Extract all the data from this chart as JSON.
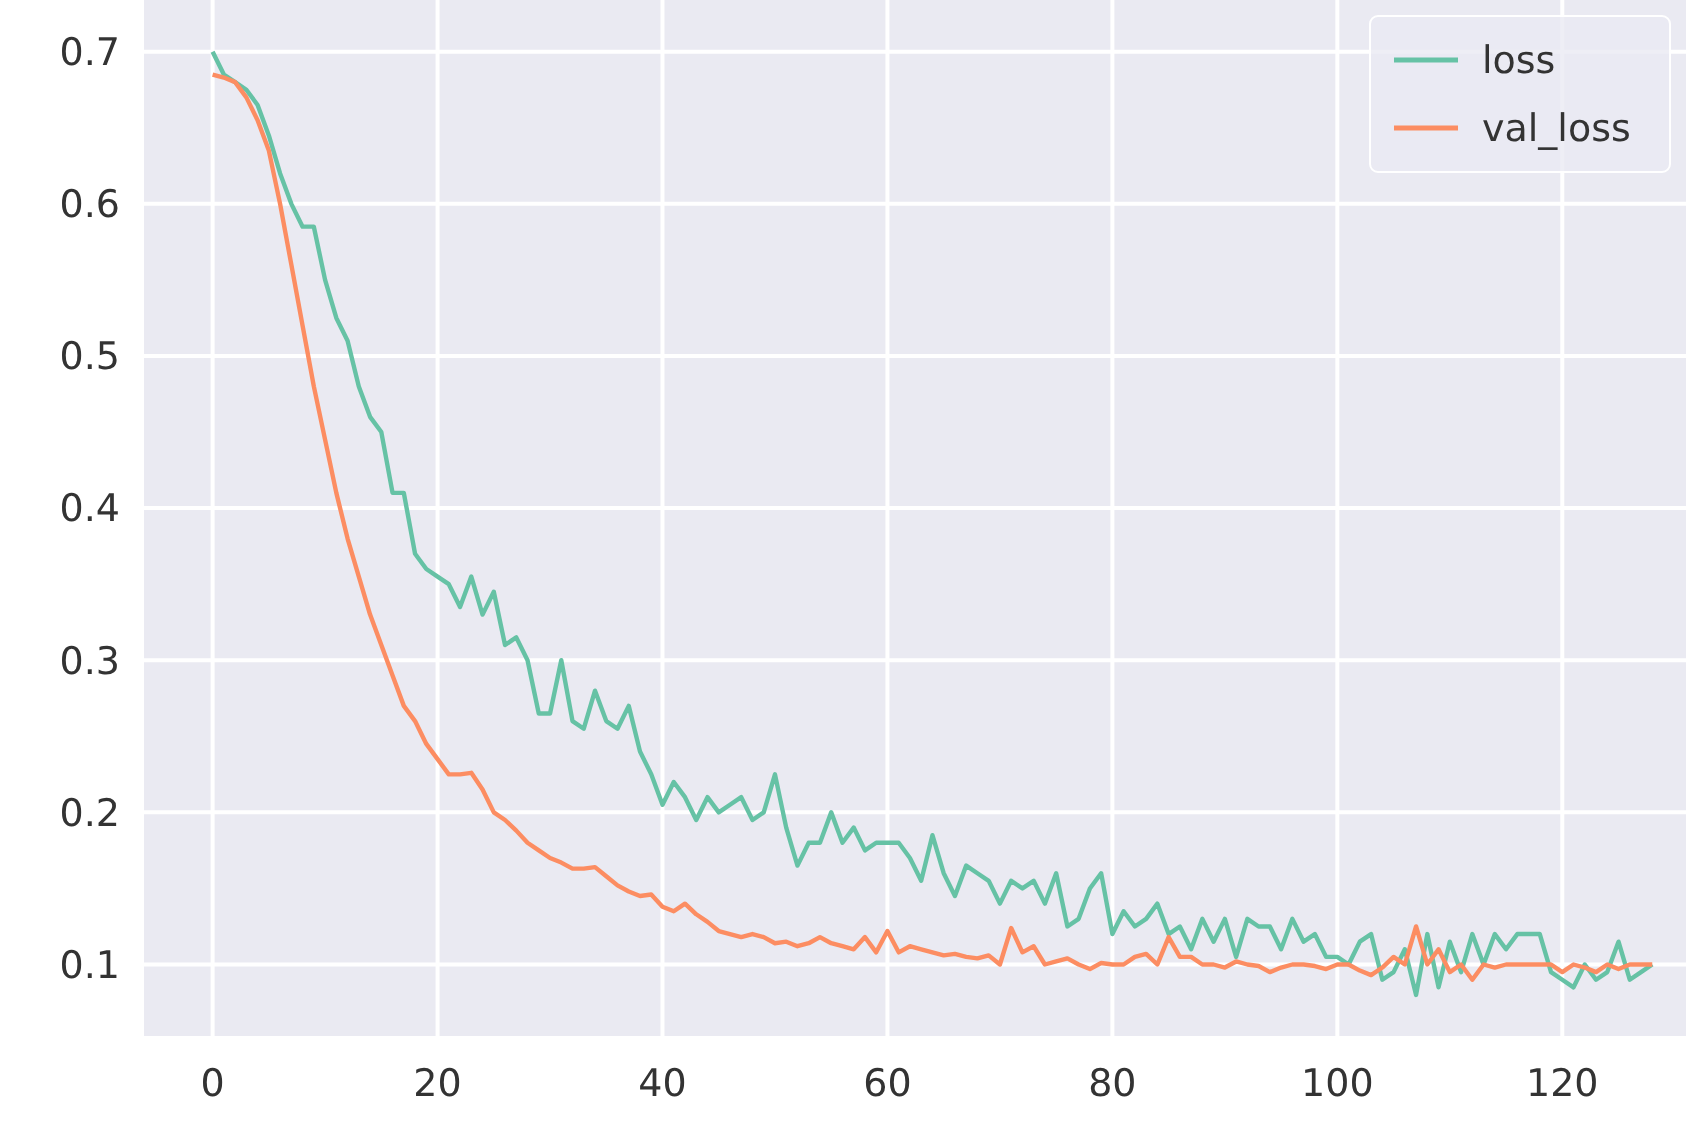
{
  "chart_data": {
    "type": "line",
    "x": [
      0,
      1,
      2,
      3,
      4,
      5,
      6,
      7,
      8,
      9,
      10,
      11,
      12,
      13,
      14,
      15,
      16,
      17,
      18,
      19,
      20,
      21,
      22,
      23,
      24,
      25,
      26,
      27,
      28,
      29,
      30,
      31,
      32,
      33,
      34,
      35,
      36,
      37,
      38,
      39,
      40,
      41,
      42,
      43,
      44,
      45,
      46,
      47,
      48,
      49,
      50,
      51,
      52,
      53,
      54,
      55,
      56,
      57,
      58,
      59,
      60,
      61,
      62,
      63,
      64,
      65,
      66,
      67,
      68,
      69,
      70,
      71,
      72,
      73,
      74,
      75,
      76,
      77,
      78,
      79,
      80,
      81,
      82,
      83,
      84,
      85,
      86,
      87,
      88,
      89,
      90,
      91,
      92,
      93,
      94,
      95,
      96,
      97,
      98,
      99,
      100,
      101,
      102,
      103,
      104,
      105,
      106,
      107,
      108,
      109,
      110,
      111,
      112,
      113,
      114,
      115,
      116,
      117,
      118,
      119,
      120,
      121,
      122,
      123,
      124,
      125,
      126,
      127,
      128
    ],
    "series": [
      {
        "name": "loss",
        "color": "#66c2a5",
        "values": [
          0.7,
          0.685,
          0.68,
          0.675,
          0.665,
          0.645,
          0.62,
          0.6,
          0.585,
          0.585,
          0.55,
          0.525,
          0.51,
          0.48,
          0.46,
          0.45,
          0.41,
          0.41,
          0.37,
          0.36,
          0.355,
          0.35,
          0.335,
          0.355,
          0.33,
          0.345,
          0.31,
          0.315,
          0.3,
          0.265,
          0.265,
          0.3,
          0.26,
          0.255,
          0.28,
          0.26,
          0.255,
          0.27,
          0.24,
          0.225,
          0.205,
          0.22,
          0.21,
          0.195,
          0.21,
          0.2,
          0.205,
          0.21,
          0.195,
          0.2,
          0.225,
          0.19,
          0.165,
          0.18,
          0.18,
          0.2,
          0.18,
          0.19,
          0.175,
          0.18,
          0.18,
          0.18,
          0.17,
          0.155,
          0.185,
          0.16,
          0.145,
          0.165,
          0.16,
          0.155,
          0.14,
          0.155,
          0.15,
          0.155,
          0.14,
          0.16,
          0.125,
          0.13,
          0.15,
          0.16,
          0.12,
          0.135,
          0.125,
          0.13,
          0.14,
          0.12,
          0.125,
          0.11,
          0.13,
          0.115,
          0.13,
          0.105,
          0.13,
          0.125,
          0.125,
          0.11,
          0.13,
          0.115,
          0.12,
          0.105,
          0.105,
          0.1,
          0.115,
          0.12,
          0.09,
          0.095,
          0.11,
          0.08,
          0.12,
          0.085,
          0.115,
          0.095,
          0.12,
          0.1,
          0.12,
          0.11,
          0.12,
          0.12,
          0.12,
          0.095,
          0.09,
          0.085,
          0.1,
          0.09,
          0.095,
          0.115,
          0.09,
          0.095,
          0.1
        ]
      },
      {
        "name": "val_loss",
        "color": "#fc8d62",
        "values": [
          0.685,
          0.683,
          0.68,
          0.67,
          0.655,
          0.635,
          0.6,
          0.56,
          0.52,
          0.48,
          0.445,
          0.41,
          0.38,
          0.355,
          0.33,
          0.31,
          0.29,
          0.27,
          0.26,
          0.245,
          0.235,
          0.225,
          0.225,
          0.226,
          0.215,
          0.2,
          0.195,
          0.188,
          0.18,
          0.175,
          0.17,
          0.167,
          0.163,
          0.163,
          0.164,
          0.158,
          0.152,
          0.148,
          0.145,
          0.146,
          0.138,
          0.135,
          0.14,
          0.133,
          0.128,
          0.122,
          0.12,
          0.118,
          0.12,
          0.118,
          0.114,
          0.115,
          0.112,
          0.114,
          0.118,
          0.114,
          0.112,
          0.11,
          0.118,
          0.108,
          0.122,
          0.108,
          0.112,
          0.11,
          0.108,
          0.106,
          0.107,
          0.105,
          0.104,
          0.106,
          0.1,
          0.124,
          0.108,
          0.112,
          0.1,
          0.102,
          0.104,
          0.1,
          0.097,
          0.101,
          0.1,
          0.1,
          0.105,
          0.107,
          0.1,
          0.118,
          0.105,
          0.105,
          0.1,
          0.1,
          0.098,
          0.102,
          0.1,
          0.099,
          0.095,
          0.098,
          0.1,
          0.1,
          0.099,
          0.097,
          0.1,
          0.1,
          0.096,
          0.093,
          0.098,
          0.105,
          0.1,
          0.125,
          0.1,
          0.11,
          0.095,
          0.1,
          0.09,
          0.1,
          0.098,
          0.1,
          0.1,
          0.1,
          0.1,
          0.1,
          0.095,
          0.1,
          0.098,
          0.095,
          0.1,
          0.097,
          0.1,
          0.1,
          0.1
        ]
      }
    ],
    "xlim": [
      -6.1,
      131
    ],
    "ylim": [
      0.053,
      0.734
    ],
    "xticks": [
      0,
      20,
      40,
      60,
      80,
      100,
      120
    ],
    "yticks": [
      0.1,
      0.2,
      0.3,
      0.4,
      0.5,
      0.6,
      0.7
    ],
    "grid": true,
    "legend": "top right"
  }
}
